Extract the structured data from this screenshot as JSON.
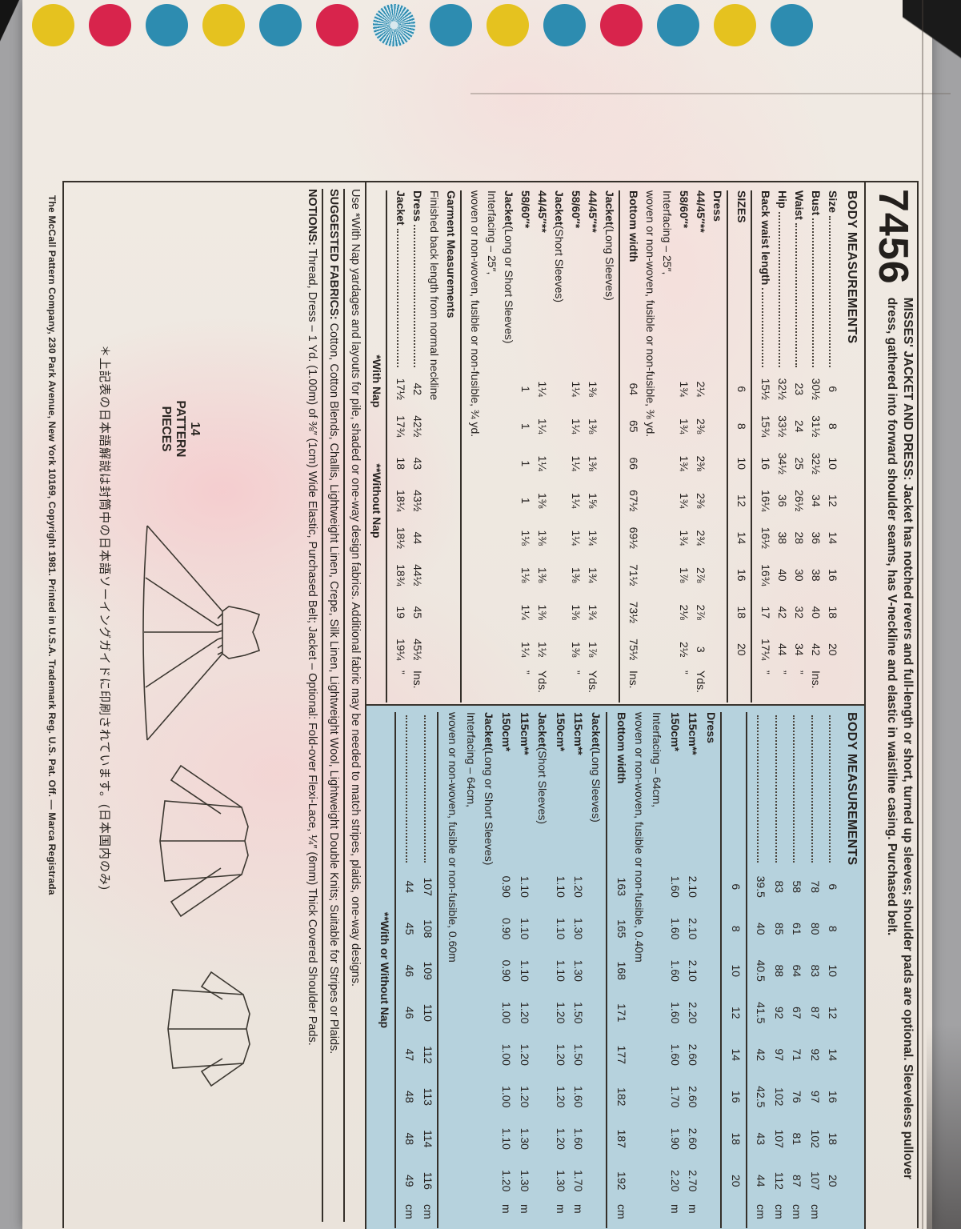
{
  "colors": {
    "red": "#d8244c",
    "yellow": "#e5c21f",
    "blue": "#2d8cb0",
    "panel_blue": "#b6d2dd",
    "ink": "#262220",
    "paper": "#f1ebe4"
  },
  "envelope": {
    "dots": [
      "yellow",
      "red",
      "blue",
      "yellow",
      "blue",
      "red",
      "blue-star",
      "blue",
      "yellow",
      "blue",
      "red",
      "blue",
      "yellow",
      "blue"
    ]
  },
  "header": {
    "pattern_number": "7456",
    "title_lead": "MISSES' JACKET AND DRESS:",
    "description": " Jacket has notched revers and full-length or short, turned up sleeves; shoulder pads are optional. Sleeveless pullover dress, gathered into forward shoulder seams, has V-neckline and elastic in waistline casing. Purchased belt."
  },
  "imperial_rows": [
    {
      "t": "title",
      "text": "BODY MEASUREMENTS"
    },
    {
      "t": "meas",
      "label": "Size",
      "dots": true,
      "values": [
        "6",
        "8",
        "10",
        "12",
        "14",
        "16",
        "18",
        "20"
      ],
      "unit": ""
    },
    {
      "t": "meas",
      "label": "Bust",
      "dots": true,
      "values": [
        "30½",
        "31½",
        "32½",
        "34",
        "36",
        "38",
        "40",
        "42"
      ],
      "unit": "Ins."
    },
    {
      "t": "meas",
      "label": "Waist",
      "dots": true,
      "values": [
        "23",
        "24",
        "25",
        "26½",
        "28",
        "30",
        "32",
        "34"
      ],
      "unit": "”"
    },
    {
      "t": "meas",
      "label": "Hip",
      "dots": true,
      "values": [
        "32½",
        "33½",
        "34½",
        "36",
        "38",
        "40",
        "42",
        "44"
      ],
      "unit": "”"
    },
    {
      "t": "meas",
      "label": "Back waist length",
      "dots": true,
      "values": [
        "15½",
        "15¾",
        "16",
        "16¼",
        "16½",
        "16¾",
        "17",
        "17¼"
      ],
      "unit": "”"
    },
    {
      "t": "rule"
    },
    {
      "t": "meas",
      "label": "SIZES",
      "values": [
        "6",
        "8",
        "10",
        "12",
        "14",
        "16",
        "18",
        "20"
      ],
      "unit": ""
    },
    {
      "t": "rule"
    },
    {
      "t": "heading",
      "text": "Dress"
    },
    {
      "t": "meas",
      "label": "44/45″**",
      "values": [
        "2¼",
        "2⅜",
        "2⅜",
        "2⅜",
        "2¾",
        "2⅞",
        "2⅞",
        "3"
      ],
      "unit": "Yds."
    },
    {
      "t": "meas",
      "label": "58/60″*",
      "values": [
        "1¾",
        "1¾",
        "1¾",
        "1¾",
        "1¾",
        "1⅞",
        "2⅛",
        "2½"
      ],
      "unit": "”"
    },
    {
      "t": "note",
      "text": "Interfacing – 25″,"
    },
    {
      "t": "note",
      "text": "woven or non-woven, fusible or non-fusible, ⅜ yd."
    },
    {
      "t": "meas",
      "label": "Bottom width",
      "values": [
        "64",
        "65",
        "66",
        "67½",
        "69½",
        "71½",
        "73½",
        "75½"
      ],
      "unit": "Ins."
    },
    {
      "t": "rule"
    },
    {
      "t": "heading2",
      "bold": "Jacket",
      "rest": " (Long Sleeves)"
    },
    {
      "t": "meas",
      "label": "44/45″**",
      "values": [
        "1⅜",
        "1⅜",
        "1⅜",
        "1⅝",
        "1¾",
        "1¾",
        "1¾",
        "1⅞"
      ],
      "unit": "Yds."
    },
    {
      "t": "meas",
      "label": "58/60″*",
      "values": [
        "1¼",
        "1¼",
        "1¼",
        "1¼",
        "1¼",
        "1⅜",
        "1⅜",
        "1⅜"
      ],
      "unit": "”"
    },
    {
      "t": "heading2",
      "bold": "Jacket",
      "rest": " (Short Sleeves)"
    },
    {
      "t": "meas",
      "label": "44/45″**",
      "values": [
        "1¼",
        "1¼",
        "1¼",
        "1⅜",
        "1⅜",
        "1⅜",
        "1⅜",
        "1½"
      ],
      "unit": "Yds."
    },
    {
      "t": "meas",
      "label": "58/60″*",
      "values": [
        "1",
        "1",
        "1",
        "1",
        "1⅛",
        "1⅛",
        "1¼",
        "1¼"
      ],
      "unit": "”"
    },
    {
      "t": "heading2",
      "bold": "Jacket",
      "rest": " (Long or Short Sleeves)"
    },
    {
      "t": "note",
      "text": "Interfacing – 25″,"
    },
    {
      "t": "note",
      "text": "woven or non-woven, fusible or non-fusible, ¾ yd."
    },
    {
      "t": "rule"
    },
    {
      "t": "heading",
      "text": "Garment Measurements"
    },
    {
      "t": "note",
      "text": "Finished back length from normal neckline"
    },
    {
      "t": "meas",
      "label": "Dress",
      "dots": true,
      "values": [
        "42",
        "42½",
        "43",
        "43½",
        "44",
        "44½",
        "45",
        "45½"
      ],
      "unit": "Ins."
    },
    {
      "t": "meas",
      "label": "Jacket",
      "dots": true,
      "values": [
        "17½",
        "17¾",
        "18",
        "18¼",
        "18½",
        "18¾",
        "19",
        "19¼"
      ],
      "unit": "”"
    },
    {
      "t": "rule"
    },
    {
      "t": "center2",
      "a": "*With Nap",
      "b": "**Without Nap"
    }
  ],
  "metric_rows": [
    {
      "t": "title",
      "text": "BODY MEASUREMENTS"
    },
    {
      "t": "meas",
      "label": "",
      "dots": true,
      "values": [
        "6",
        "8",
        "10",
        "12",
        "14",
        "16",
        "18",
        "20"
      ],
      "unit": ""
    },
    {
      "t": "meas",
      "label": "",
      "dots": true,
      "values": [
        "78",
        "80",
        "83",
        "87",
        "92",
        "97",
        "102",
        "107"
      ],
      "unit": "cm"
    },
    {
      "t": "meas",
      "label": "",
      "dots": true,
      "values": [
        "58",
        "61",
        "64",
        "67",
        "71",
        "76",
        "81",
        "87"
      ],
      "unit": "cm"
    },
    {
      "t": "meas",
      "label": "",
      "dots": true,
      "values": [
        "83",
        "85",
        "88",
        "92",
        "97",
        "102",
        "107",
        "112"
      ],
      "unit": "cm"
    },
    {
      "t": "meas",
      "label": "",
      "dots": true,
      "values": [
        "39.5",
        "40",
        "40.5",
        "41.5",
        "42",
        "42.5",
        "43",
        "44"
      ],
      "unit": "cm"
    },
    {
      "t": "rule"
    },
    {
      "t": "meas",
      "label": "",
      "values": [
        "6",
        "8",
        "10",
        "12",
        "14",
        "16",
        "18",
        "20"
      ],
      "unit": ""
    },
    {
      "t": "rule"
    },
    {
      "t": "heading",
      "text": "Dress"
    },
    {
      "t": "meas",
      "label": "115cm**",
      "values": [
        "2.10",
        "2.10",
        "2.10",
        "2.20",
        "2.60",
        "2.60",
        "2.60",
        "2.70"
      ],
      "unit": "m"
    },
    {
      "t": "meas",
      "label": "150cm*",
      "values": [
        "1.60",
        "1.60",
        "1.60",
        "1.60",
        "1.60",
        "1.70",
        "1.90",
        "2.20"
      ],
      "unit": "m"
    },
    {
      "t": "note",
      "text": "Interfacing – 64cm,"
    },
    {
      "t": "note",
      "text": "woven or non-woven, fusible or non-fusible, 0.40m"
    },
    {
      "t": "meas",
      "label": "Bottom width",
      "values": [
        "163",
        "165",
        "168",
        "171",
        "177",
        "182",
        "187",
        "192"
      ],
      "unit": "cm"
    },
    {
      "t": "rule"
    },
    {
      "t": "heading2",
      "bold": "Jacket",
      "rest": " (Long Sleeves)"
    },
    {
      "t": "meas",
      "label": "115cm**",
      "values": [
        "1.20",
        "1.30",
        "1.30",
        "1.50",
        "1.50",
        "1.60",
        "1.60",
        "1.70"
      ],
      "unit": "m"
    },
    {
      "t": "meas",
      "label": "150cm*",
      "values": [
        "1.10",
        "1.10",
        "1.10",
        "1.20",
        "1.20",
        "1.20",
        "1.20",
        "1.30"
      ],
      "unit": "m"
    },
    {
      "t": "heading2",
      "bold": "Jacket",
      "rest": " (Short Sleeves)"
    },
    {
      "t": "meas",
      "label": "115cm**",
      "values": [
        "1.10",
        "1.10",
        "1.10",
        "1.20",
        "1.20",
        "1.20",
        "1.30",
        "1.30"
      ],
      "unit": "m"
    },
    {
      "t": "meas",
      "label": "150cm*",
      "values": [
        "0.90",
        "0.90",
        "0.90",
        "1.00",
        "1.00",
        "1.00",
        "1.10",
        "1.20"
      ],
      "unit": "m"
    },
    {
      "t": "heading2",
      "bold": "Jacket",
      "rest": " (Long or Short Sleeves)"
    },
    {
      "t": "note",
      "text": "Interfacing – 64cm,"
    },
    {
      "t": "note",
      "text": "woven or non-woven, fusible or non-fusible, 0.60m"
    },
    {
      "t": "rule"
    },
    {
      "t": "meas",
      "label": "",
      "dots": true,
      "values": [
        "107",
        "108",
        "109",
        "110",
        "112",
        "113",
        "114",
        "116"
      ],
      "unit": "cm"
    },
    {
      "t": "meas",
      "label": "",
      "dots": true,
      "values": [
        "44",
        "45",
        "46",
        "46",
        "47",
        "48",
        "48",
        "49"
      ],
      "unit": "cm"
    },
    {
      "t": "rule"
    },
    {
      "t": "center",
      "text": "**With or Without Nap"
    }
  ],
  "paragraphs": {
    "nap_note": "Use *With Nap yardages and layouts for pile, shaded or one-way design fabrics. Additional fabric may be needed to match stripes, plaids, one-way designs.",
    "fabrics_lead": "SUGGESTED FABRICS:",
    "fabrics": " Cotton, Cotton Blends, Challis, Lightweight Linen, Crepe, Silk Linen, Lightweight Wool, Lightweight Double Knits; Suitable for Stripes or Plaids.",
    "notions_lead": "NOTIONS:",
    "notions": " Thread, Dress – 1 Yd. (1.00m) of ⅜″ (1cm) Wide Elastic, Purchased Belt; Jacket – Optional: Fold-over Flexi-Lace, ¼″ (6mm) Thick Covered Shoulder Pads."
  },
  "bottom": {
    "pieces_count": "14",
    "pieces_label1": "PATTERN",
    "pieces_label2": "PIECES",
    "japanese_note": "＊上記表の日本語解説は封筒中の日本語ソーイングガイドに印刷されています。(日本国内のみ)"
  },
  "footer": "The McCall Pattern Company, 230 Park Avenue, New York 10169, Copyright 1981. Printed in U.S.A. Trademark Reg. U.S. Pat. Off. — Marca Registrada"
}
